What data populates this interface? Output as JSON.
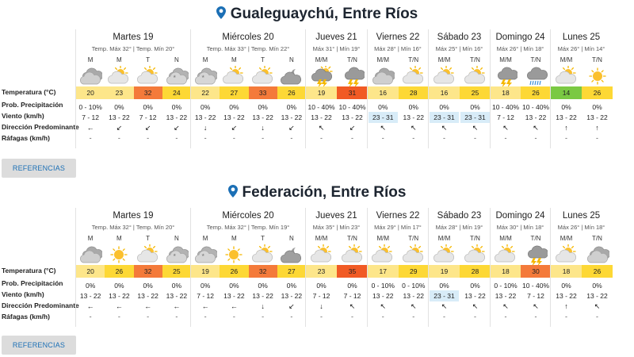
{
  "colors": {
    "t14": "#7ac943",
    "t16": "#fde68a",
    "t17": "#fde68a",
    "t18": "#fde68a",
    "t19": "#fde68a",
    "t20": "#fde68a",
    "t22": "#fde68a",
    "t23": "#fde68a",
    "t24": "#fdd835",
    "t25": "#fdd835",
    "t26": "#fdd835",
    "t27": "#fdd835",
    "t28": "#fdd835",
    "t29": "#fdd835",
    "t30": "#f47a3a",
    "t31": "#f15a24",
    "t32": "#f47a3a",
    "t33": "#f47a3a",
    "t35": "#f15a24",
    "accent": "#1b6fb5",
    "highlight": "#d8ecf8"
  },
  "labels": {
    "temperatura": "Temperatura (°C)",
    "precip": "Prob. Precipitación",
    "viento": "Viento (km/h)",
    "direccion": "Dirección Predominante",
    "rafagas": "Ráfagas (km/h)"
  },
  "cities": [
    {
      "title": "Gualeguaychú, Entre Ríos",
      "button": "REFERENCIAS",
      "days": [
        {
          "name": "Martes 19",
          "temps": "Temp. Máx 32° | Temp. Mín 20°",
          "periods": [
            {
              "p": "M",
              "icon": "cloudy-icon",
              "temp": "20",
              "precip": "0 - 10%",
              "wind": "7 - 12",
              "dir": "←",
              "gust": "-"
            },
            {
              "p": "M",
              "icon": "partly-sunny-icon",
              "temp": "23",
              "precip": "0%",
              "wind": "13 - 22",
              "dir": "↙",
              "gust": "-"
            },
            {
              "p": "T",
              "icon": "partly-sunny-icon",
              "temp": "32",
              "precip": "0%",
              "wind": "7 - 12",
              "dir": "↙",
              "gust": "-"
            },
            {
              "p": "N",
              "icon": "cloudy-night-icon",
              "temp": "24",
              "precip": "0%",
              "wind": "13 - 22",
              "dir": "↙",
              "gust": "-"
            }
          ]
        },
        {
          "name": "Miércoles 20",
          "temps": "Temp. Máx 33° | Temp. Mín 22°",
          "periods": [
            {
              "p": "M",
              "icon": "cloudy-night-icon",
              "temp": "22",
              "precip": "0%",
              "wind": "13 - 22",
              "dir": "↓",
              "gust": "-"
            },
            {
              "p": "M",
              "icon": "partly-sunny-icon",
              "temp": "27",
              "precip": "0%",
              "wind": "13 - 22",
              "dir": "↙",
              "gust": "-"
            },
            {
              "p": "T",
              "icon": "partly-sunny-icon",
              "temp": "33",
              "precip": "0%",
              "wind": "13 - 22",
              "dir": "↓",
              "gust": "-"
            },
            {
              "p": "N",
              "icon": "partly-cloudy-night-icon",
              "temp": "26",
              "precip": "0%",
              "wind": "13 - 22",
              "dir": "↙",
              "gust": "-"
            }
          ]
        },
        {
          "name": "Jueves 21",
          "temps": "Máx 31° | Mín 19°",
          "periods": [
            {
              "p": "M/M",
              "icon": "storm-sun-icon",
              "temp": "19",
              "precip": "10 - 40%",
              "wind": "13 - 22",
              "dir": "↖",
              "gust": "-"
            },
            {
              "p": "T/N",
              "icon": "storm-icon",
              "temp": "31",
              "precip": "10 - 40%",
              "wind": "13 - 22",
              "dir": "↙",
              "gust": "-"
            }
          ]
        },
        {
          "name": "Viernes 22",
          "temps": "Máx 28° | Mín 16°",
          "periods": [
            {
              "p": "M/M",
              "icon": "cloudy-icon",
              "temp": "16",
              "precip": "0%",
              "wind": "23 - 31",
              "dir": "↖",
              "gust": "-",
              "hl": true
            },
            {
              "p": "T/N",
              "icon": "partly-sunny-icon",
              "temp": "28",
              "precip": "0%",
              "wind": "13 - 22",
              "dir": "↖",
              "gust": "-"
            }
          ]
        },
        {
          "name": "Sábado 23",
          "temps": "Máx 25° | Mín 16°",
          "periods": [
            {
              "p": "M/M",
              "icon": "partly-sunny-icon",
              "temp": "16",
              "precip": "0%",
              "wind": "23 - 31",
              "dir": "↖",
              "gust": "-",
              "hl": true
            },
            {
              "p": "T/N",
              "icon": "partly-sunny-icon",
              "temp": "25",
              "precip": "0%",
              "wind": "23 - 31",
              "dir": "↖",
              "gust": "-",
              "hl": true
            }
          ]
        },
        {
          "name": "Domingo 24",
          "temps": "Máx 26° | Mín 18°",
          "periods": [
            {
              "p": "M/M",
              "icon": "storm-icon",
              "temp": "18",
              "precip": "10 - 40%",
              "wind": "7 - 12",
              "dir": "↖",
              "gust": "-"
            },
            {
              "p": "T/N",
              "icon": "rain-icon",
              "temp": "26",
              "precip": "10 - 40%",
              "wind": "13 - 22",
              "dir": "↖",
              "gust": "-"
            }
          ]
        },
        {
          "name": "Lunes 25",
          "temps": "Máx 26° | Mín 14°",
          "periods": [
            {
              "p": "M/M",
              "icon": "partly-sunny-icon",
              "temp": "14",
              "precip": "0%",
              "wind": "13 - 22",
              "dir": "↑",
              "gust": "-"
            },
            {
              "p": "T/N",
              "icon": "sunny-icon",
              "temp": "26",
              "precip": "0%",
              "wind": "13 - 22",
              "dir": "↑",
              "gust": "-"
            }
          ]
        }
      ]
    },
    {
      "title": "Federación, Entre Ríos",
      "button": "REFERENCIAS",
      "days": [
        {
          "name": "Martes 19",
          "temps": "Temp. Máx 32° | Temp. Mín 20°",
          "periods": [
            {
              "p": "M",
              "icon": "cloudy-icon",
              "temp": "20",
              "precip": "0%",
              "wind": "13 - 22",
              "dir": "←",
              "gust": "-"
            },
            {
              "p": "M",
              "icon": "sunny-icon",
              "temp": "26",
              "precip": "0%",
              "wind": "13 - 22",
              "dir": "←",
              "gust": "-"
            },
            {
              "p": "T",
              "icon": "partly-sunny-icon",
              "temp": "32",
              "precip": "0%",
              "wind": "13 - 22",
              "dir": "←",
              "gust": "-"
            },
            {
              "p": "N",
              "icon": "cloudy-night-icon",
              "temp": "25",
              "precip": "0%",
              "wind": "13 - 22",
              "dir": "←",
              "gust": "-"
            }
          ]
        },
        {
          "name": "Miércoles 20",
          "temps": "Temp. Máx 32° | Temp. Mín 19°",
          "periods": [
            {
              "p": "M",
              "icon": "cloudy-night-icon",
              "temp": "19",
              "precip": "0%",
              "wind": "7 - 12",
              "dir": "←",
              "gust": "-"
            },
            {
              "p": "M",
              "icon": "sunny-icon",
              "temp": "26",
              "precip": "0%",
              "wind": "13 - 22",
              "dir": "←",
              "gust": "-"
            },
            {
              "p": "T",
              "icon": "partly-sunny-icon",
              "temp": "32",
              "precip": "0%",
              "wind": "13 - 22",
              "dir": "↓",
              "gust": "-"
            },
            {
              "p": "N",
              "icon": "partly-cloudy-night-icon",
              "temp": "27",
              "precip": "0%",
              "wind": "13 - 22",
              "dir": "↙",
              "gust": "-"
            }
          ]
        },
        {
          "name": "Jueves 21",
          "temps": "Máx 35° | Mín 23°",
          "periods": [
            {
              "p": "M/M",
              "icon": "partly-sunny-icon",
              "temp": "23",
              "precip": "0%",
              "wind": "7 - 12",
              "dir": "↓",
              "gust": "-"
            },
            {
              "p": "T/N",
              "icon": "partly-sunny-icon",
              "temp": "35",
              "precip": "0%",
              "wind": "7 - 12",
              "dir": "↖",
              "gust": "-"
            }
          ]
        },
        {
          "name": "Viernes 22",
          "temps": "Máx 29° | Mín 17°",
          "periods": [
            {
              "p": "M/M",
              "icon": "partly-sunny-icon",
              "temp": "17",
              "precip": "0 - 10%",
              "wind": "13 - 22",
              "dir": "↖",
              "gust": "-"
            },
            {
              "p": "T/N",
              "icon": "partly-sunny-icon",
              "temp": "29",
              "precip": "0 - 10%",
              "wind": "13 - 22",
              "dir": "↖",
              "gust": "-"
            }
          ]
        },
        {
          "name": "Sábado 23",
          "temps": "Máx 28° | Mín 19°",
          "periods": [
            {
              "p": "M/M",
              "icon": "partly-sunny-icon",
              "temp": "19",
              "precip": "0%",
              "wind": "23 - 31",
              "dir": "↖",
              "gust": "-",
              "hl": true
            },
            {
              "p": "T/N",
              "icon": "partly-sunny-icon",
              "temp": "28",
              "precip": "0%",
              "wind": "13 - 22",
              "dir": "↖",
              "gust": "-"
            }
          ]
        },
        {
          "name": "Domingo 24",
          "temps": "Máx 30° | Mín 18°",
          "periods": [
            {
              "p": "M/M",
              "icon": "partly-sunny-icon",
              "temp": "18",
              "precip": "0 - 10%",
              "wind": "13 - 22",
              "dir": "↖",
              "gust": "-"
            },
            {
              "p": "T/N",
              "icon": "storm-icon",
              "temp": "30",
              "precip": "10 - 40%",
              "wind": "7 - 12",
              "dir": "↖",
              "gust": "-"
            }
          ]
        },
        {
          "name": "Lunes 25",
          "temps": "Máx 26° | Mín 18°",
          "periods": [
            {
              "p": "M/M",
              "icon": "partly-sunny-icon",
              "temp": "18",
              "precip": "0%",
              "wind": "13 - 22",
              "dir": "↑",
              "gust": "-"
            },
            {
              "p": "T/N",
              "icon": "cloudy-icon",
              "temp": "26",
              "precip": "0%",
              "wind": "13 - 22",
              "dir": "↖",
              "gust": "-"
            }
          ]
        }
      ]
    }
  ]
}
